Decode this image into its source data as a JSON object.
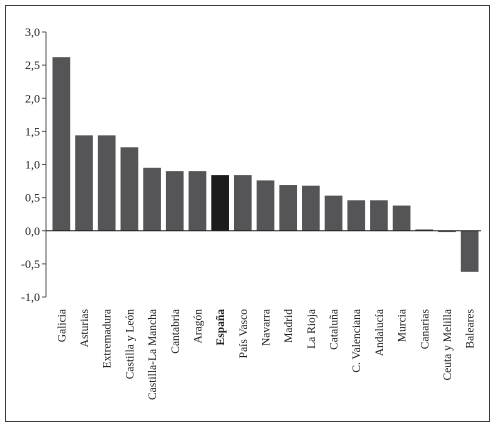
{
  "chart_data": {
    "type": "bar",
    "categories": [
      "Galicia",
      "Asturias",
      "Extremadura",
      "Castilla y León",
      "Castilla-La Mancha",
      "Cantabria",
      "Aragón",
      "España",
      "País Vasco",
      "Navarra",
      "Madrid",
      "La Rioja",
      "Cataluña",
      "C. Valenciana",
      "Andalucía",
      "Murcia",
      "Canarias",
      "Ceuta y Melilla",
      "Baleares"
    ],
    "values": [
      2.62,
      1.44,
      1.44,
      1.26,
      0.95,
      0.9,
      0.9,
      0.84,
      0.84,
      0.76,
      0.69,
      0.68,
      0.53,
      0.46,
      0.46,
      0.38,
      0.02,
      -0.02,
      -0.62
    ],
    "highlight": "España",
    "ylim": [
      -1.0,
      3.0
    ],
    "yticks": [
      "-1,0",
      "-0,5",
      "0,0",
      "0,5",
      "1,0",
      "1,5",
      "2,0",
      "2,5",
      "3,0"
    ],
    "ytick_values": [
      -1.0,
      -0.5,
      0.0,
      0.5,
      1.0,
      1.5,
      2.0,
      2.5,
      3.0
    ],
    "grid": false,
    "colors": {
      "bar": "#555558",
      "highlight": "#1c1c1c",
      "axis": "#555555",
      "zero_line": "#222222"
    },
    "title": "",
    "xlabel": "",
    "ylabel": ""
  }
}
